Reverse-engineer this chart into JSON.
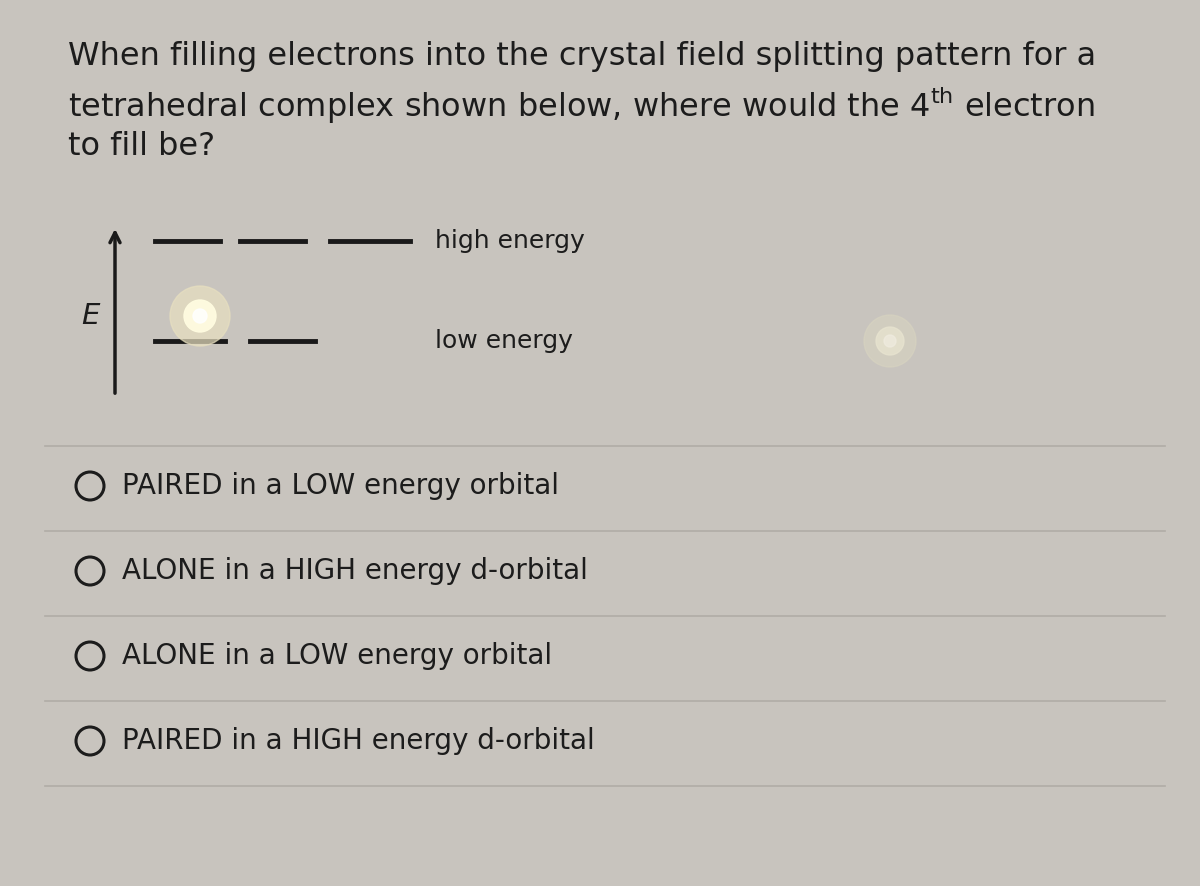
{
  "background_color": "#c8c4be",
  "title_line1": "When filling electrons into the crystal field splitting pattern for a",
  "title_line2_pre": "tetrahedral complex shown below, where would the 4",
  "title_line2_super": "th",
  "title_line2_post": " electron",
  "title_line3": "to fill be?",
  "title_fontsize": 23,
  "high_energy_label": "high energy",
  "low_energy_label": "low energy",
  "energy_label": "E",
  "choices": [
    "PAIRED in a LOW energy orbital",
    "ALONE in a HIGH energy d-orbital",
    "ALONE in a LOW energy orbital",
    "PAIRED in a HIGH energy d-orbital"
  ],
  "choice_fontsize": 20,
  "line_color": "#1a1a1a",
  "divider_color": "#b0aca6",
  "text_color": "#1c1c1c",
  "glow_color_inner": "#fffce0",
  "glow_color_outer": "#e8e0c0",
  "glow_color2_inner": "#e8e4d0",
  "glow_color2_outer": "#d8d4c0"
}
